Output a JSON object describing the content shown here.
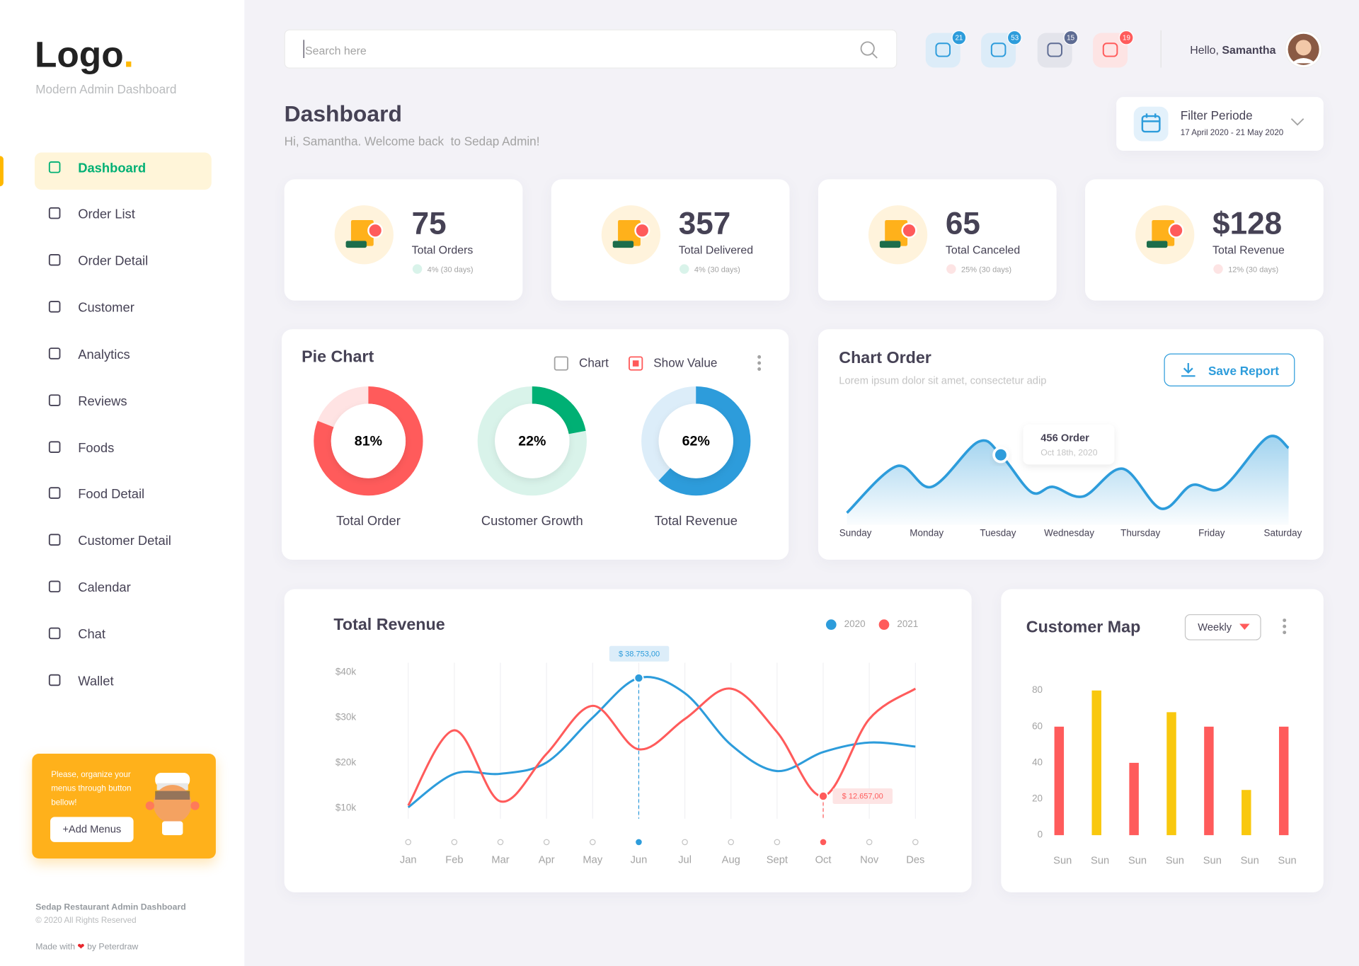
{
  "sidebar": {
    "logo": "Logo",
    "logo_dot": ".",
    "subtitle": "Modern Admin Dashboard",
    "nav": [
      "Dashboard",
      "Order List",
      "Order Detail",
      "Customer",
      "Analytics",
      "Reviews",
      "Foods",
      "Food Detail",
      "Customer Detail",
      "Calendar",
      "Chat",
      "Wallet"
    ],
    "active": 0,
    "promo": {
      "text": "Please, organize your menus through button bellow!",
      "button": "+Add Menus"
    },
    "footer": {
      "title": "Sedap Restaurant Admin Dashboard",
      "copyright": "© 2020 All Rights Reserved",
      "made_with": "Made with",
      "by": "by Peterdraw"
    }
  },
  "header": {
    "search_placeholder": "Search here",
    "badges": [
      21,
      53,
      15,
      19
    ],
    "greeting": "Hello,",
    "user": "Samantha"
  },
  "page": {
    "title": "Dashboard",
    "welcome": "Hi, Samantha. Welcome back  to Sedap Admin!",
    "filter": {
      "title": "Filter Periode",
      "range": "17 April 2020 - 21 May 2020"
    }
  },
  "stats": [
    {
      "value": 75,
      "label": "Total Orders",
      "change": "4% (30 days)",
      "trend": "up"
    },
    {
      "value": 357,
      "label": "Total Delivered",
      "change": "4% (30 days)",
      "trend": "up"
    },
    {
      "value": 65,
      "label": "Total Canceled",
      "change": "25% (30 days)",
      "trend": "down"
    },
    {
      "value": "$128",
      "label": "Total Revenue",
      "change": "12% (30 days)",
      "trend": "down"
    }
  ],
  "chart_data": [
    {
      "type": "pie",
      "title": "Pie Chart",
      "options": [
        {
          "label": "Chart",
          "checked": false
        },
        {
          "label": "Show Value",
          "checked": true
        }
      ],
      "categories": [
        "Total Order",
        "Customer Growth",
        "Total Revenue"
      ],
      "values": [
        81,
        22,
        62
      ],
      "value_labels": [
        "81%",
        "22%",
        "62%"
      ],
      "colors": [
        "#ff5b5b",
        "#00b074",
        "#2d9cdb"
      ],
      "track_colors": [
        "#ffe3e3",
        "#d9f3ea",
        "#dcedf9"
      ]
    },
    {
      "type": "area",
      "title": "Chart Order",
      "subtitle": "Lorem ipsum dolor sit amet, consectetur adip",
      "button": "Save Report",
      "x": [
        -0.12,
        0.58,
        1.07,
        1.72,
        2.04,
        2.47,
        2.77,
        3.2,
        3.75,
        4.29,
        4.72,
        5.15,
        5.78,
        6.08
      ],
      "values": [
        97,
        386,
        258,
        536,
        456,
        225,
        258,
        199,
        370,
        123,
        268,
        252,
        563,
        499
      ],
      "xlim": [
        -0.15,
        6.2
      ],
      "xticks": [
        {
          "value": 0,
          "label": "Sunday"
        },
        {
          "value": 1,
          "label": "Monday"
        },
        {
          "value": 2,
          "label": "Tuesday"
        },
        {
          "value": 3,
          "label": "Wednesday"
        },
        {
          "value": 4,
          "label": "Thursday"
        },
        {
          "value": 5,
          "label": "Friday"
        },
        {
          "value": 6,
          "label": "Saturday"
        }
      ],
      "ylim": [
        0,
        600
      ],
      "color": "#2d9cdb",
      "highlight": {
        "index": 4,
        "label": "456 Order",
        "date": "Oct 18th, 2020"
      }
    },
    {
      "type": "line",
      "title": "Total Revenue",
      "categories": [
        "Jan",
        "Feb",
        "Mar",
        "Apr",
        "May",
        "Jun",
        "Jul",
        "Aug",
        "Sept",
        "Oct",
        "Nov",
        "Des"
      ],
      "series": [
        {
          "name": "2020",
          "color": "#2d9cdb",
          "values": [
            10200,
            17600,
            17600,
            20100,
            30000,
            38753,
            35400,
            24000,
            18200,
            22400,
            24500,
            23600
          ],
          "value_labels": [
            null,
            null,
            null,
            null,
            null,
            "$ 38.753,00",
            null,
            null,
            null,
            null,
            null,
            null
          ]
        },
        {
          "name": "2021",
          "color": "#ff5b5b",
          "values": [
            10600,
            27200,
            11500,
            22000,
            32600,
            23000,
            29700,
            36400,
            26800,
            12657,
            29700,
            36400
          ],
          "value_labels": [
            null,
            null,
            null,
            null,
            null,
            null,
            null,
            null,
            null,
            "$ 12.657,00",
            null,
            null
          ]
        }
      ],
      "ylim": [
        5000,
        42000
      ],
      "yticks": [
        {
          "value": 10000,
          "label": "$10k"
        },
        {
          "value": 20000,
          "label": "$20k"
        },
        {
          "value": 30000,
          "label": "$30k"
        },
        {
          "value": 40000,
          "label": "$40k"
        }
      ],
      "grid": true
    },
    {
      "type": "bar",
      "title": "Customer Map",
      "dropdown": "Weekly",
      "categories": [
        "Sun",
        "Sun",
        "Sun",
        "Sun",
        "Sun",
        "Sun",
        "Sun"
      ],
      "values": [
        60,
        80,
        40,
        68,
        60,
        25,
        60
      ],
      "colors": [
        "#ff5b5b",
        "#f9c80e",
        "#ff5b5b",
        "#f9c80e",
        "#ff5b5b",
        "#f9c80e",
        "#ff5b5b"
      ],
      "ylim": [
        0,
        80
      ],
      "yticks": [
        0,
        20,
        40,
        60,
        80
      ]
    }
  ]
}
